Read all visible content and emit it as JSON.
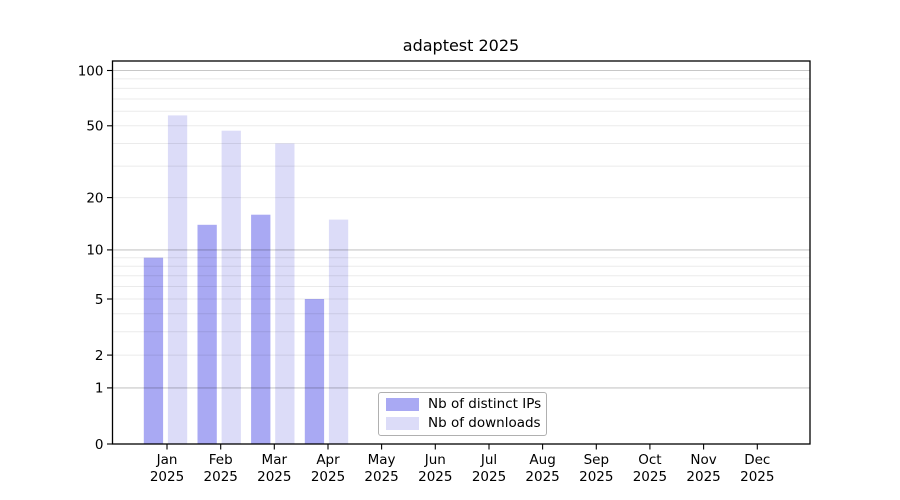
{
  "title": "adaptest 2025",
  "chart_data": {
    "type": "bar",
    "title": "adaptest 2025",
    "categories": [
      "Jan",
      "Feb",
      "Mar",
      "Apr",
      "May",
      "Jun",
      "Jul",
      "Aug",
      "Sep",
      "Oct",
      "Nov",
      "Dec"
    ],
    "category_year": "2025",
    "series": [
      {
        "name": "Nb of distinct IPs",
        "color": "#a9a9f3",
        "values": [
          9,
          14,
          16,
          5,
          0,
          0,
          0,
          0,
          0,
          0,
          0,
          0
        ]
      },
      {
        "name": "Nb of downloads",
        "color": "#dcdcf8",
        "values": [
          57,
          47,
          40,
          15,
          0,
          0,
          0,
          0,
          0,
          0,
          0,
          0
        ]
      }
    ],
    "yscale": "log1p",
    "ylim": [
      0,
      112
    ],
    "yticks": [
      0,
      1,
      2,
      5,
      10,
      20,
      50,
      100
    ],
    "y_major_gridlines": [
      1,
      10,
      100
    ],
    "y_minor_gridlines": [
      2,
      3,
      4,
      5,
      6,
      7,
      8,
      9,
      20,
      30,
      40,
      50,
      60,
      70,
      80,
      90
    ],
    "grid": true,
    "legend_position": "inside lower center"
  },
  "colors": {
    "axis": "#000000",
    "major_grid": "rgba(0,0,0,0.22)",
    "minor_grid": "rgba(0,0,0,0.08)",
    "text": "#000000",
    "legend_border": "#b0b0b0",
    "background": "#ffffff"
  }
}
